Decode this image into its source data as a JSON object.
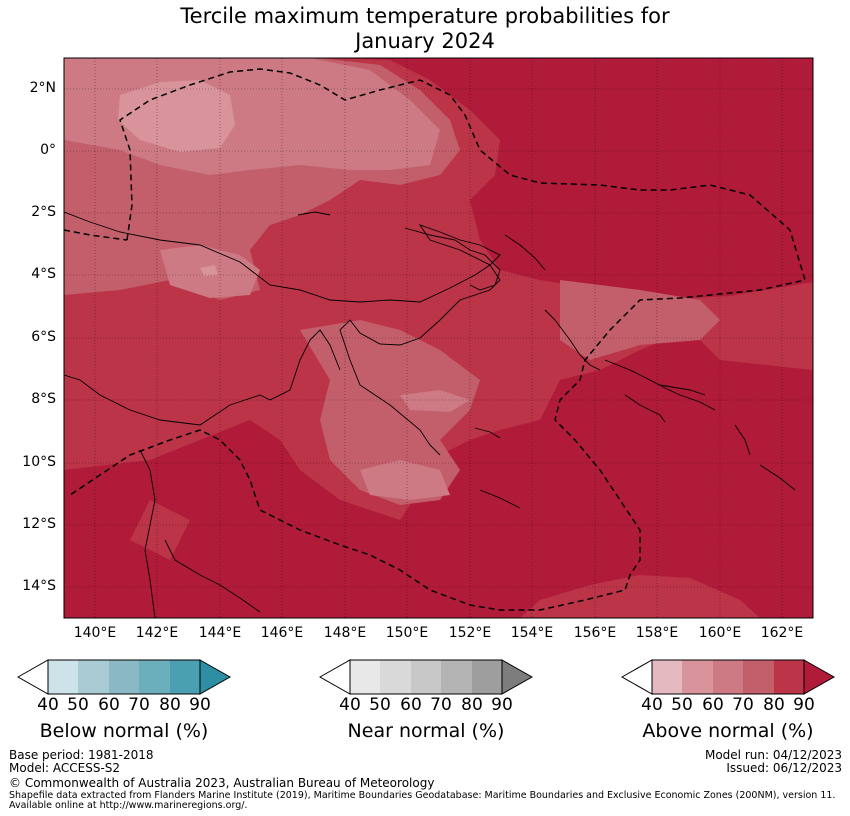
{
  "title": {
    "line1": "Tercile maximum temperature probabilities for",
    "line2": "January 2024"
  },
  "axes": {
    "lat_labels": [
      "2°N",
      "0°",
      "2°S",
      "4°S",
      "6°S",
      "8°S",
      "10°S",
      "12°S",
      "14°S"
    ],
    "lon_labels": [
      "140°E",
      "142°E",
      "144°E",
      "146°E",
      "148°E",
      "150°E",
      "152°E",
      "154°E",
      "156°E",
      "158°E",
      "160°E",
      "162°E"
    ]
  },
  "map_info": {
    "region": "Papua New Guinea / Solomon Islands",
    "lat_range": [
      "3°N",
      "15°S"
    ],
    "lon_range": [
      "139°E",
      "163°E"
    ],
    "boundary_line": "dashed maritime boundary (EEZ)"
  },
  "colorbars": [
    {
      "ticks": [
        "40",
        "50",
        "60",
        "70",
        "80",
        "90"
      ],
      "label": "Below normal (%)",
      "colors": [
        "#ffffff",
        "#cce3ea",
        "#a9cbd4",
        "#8bb8c5",
        "#6baebc",
        "#4a9fb1",
        "#2e8fa4"
      ]
    },
    {
      "ticks": [
        "40",
        "50",
        "60",
        "70",
        "80",
        "90"
      ],
      "label": "Near normal (%)",
      "colors": [
        "#ffffff",
        "#e8e8e8",
        "#d9d9d9",
        "#c8c8c8",
        "#b4b4b4",
        "#9e9e9e",
        "#7d7d7d"
      ]
    },
    {
      "ticks": [
        "40",
        "50",
        "60",
        "70",
        "80",
        "90"
      ],
      "label": "Above normal (%)",
      "colors": [
        "#ffffff",
        "#e4b9bf",
        "#d8939b",
        "#cd7a84",
        "#c35e6b",
        "#bb3448",
        "#b01b39"
      ]
    }
  ],
  "footer": {
    "base_period": "Base period: 1981-2018",
    "model": "Model: ACCESS-S2",
    "model_run": "Model run: 04/12/2023",
    "issued": "Issued: 06/12/2023",
    "copyright": "© Commonwealth of Australia 2023, Australian Bureau of Meteorology",
    "source_line1": "Shapefile data extracted from Flanders Marine Institute (2019), Maritime Boundaries Geodatabase: Maritime Boundaries and Exclusive Economic Zones (200NM), version 11.",
    "source_line2": "Available online at http://www.marineregions.org/."
  }
}
